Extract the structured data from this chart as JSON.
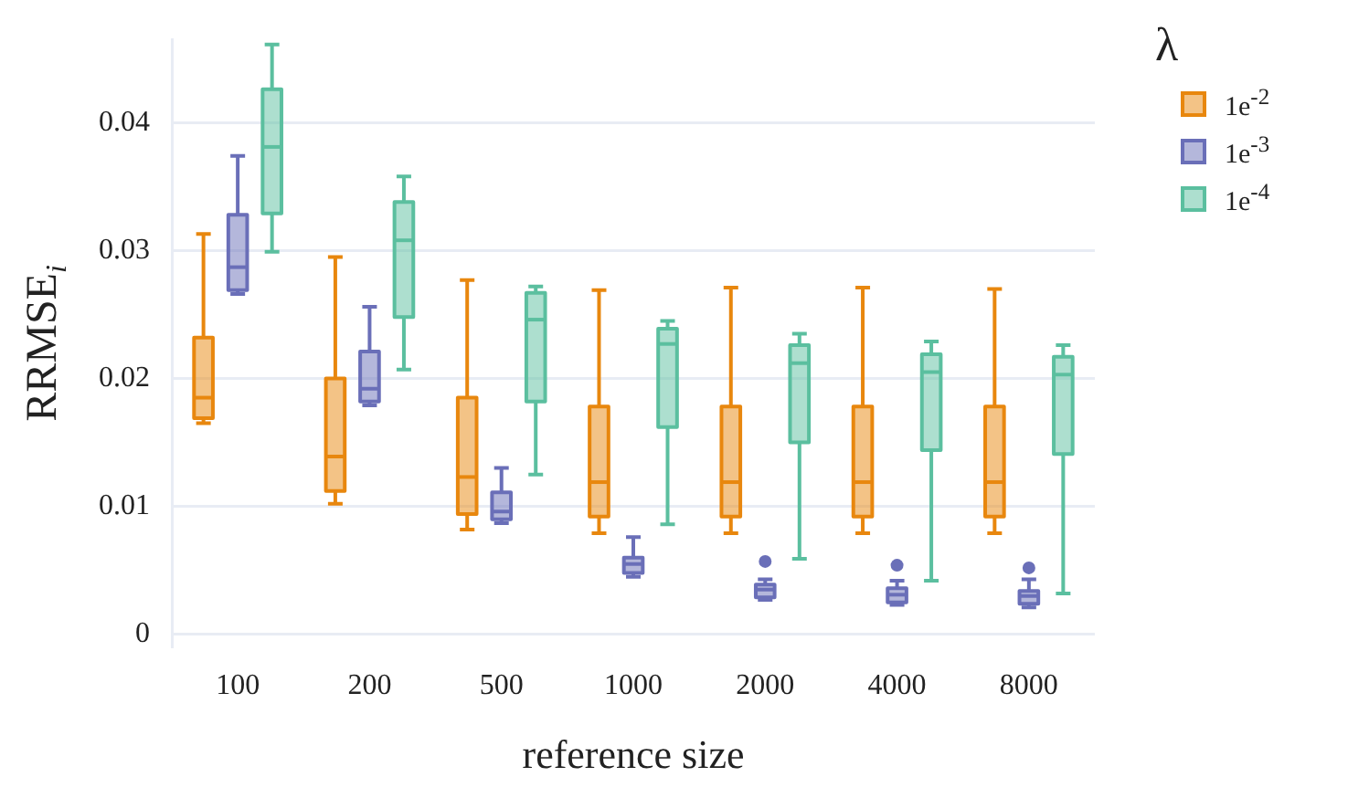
{
  "chart_data": {
    "type": "box",
    "xlabel": "reference size",
    "ylabel": "RRMSE$_{i}$",
    "legend_title": "λ",
    "legend": "top right",
    "grid": "y",
    "categories": [
      "100",
      "200",
      "500",
      "1000",
      "2000",
      "4000",
      "8000"
    ],
    "ylim": [
      -0.001,
      0.0465
    ],
    "yticks": [
      0,
      0.01,
      0.02,
      0.03,
      0.04
    ],
    "series": [
      {
        "name": "1e$^{-2}$",
        "color": "#e8870e",
        "boxes": [
          {
            "low": 0.0165,
            "q1": 0.0169,
            "median": 0.0185,
            "q3": 0.0232,
            "high": 0.0313
          },
          {
            "low": 0.0102,
            "q1": 0.0112,
            "median": 0.0139,
            "q3": 0.02,
            "high": 0.0295
          },
          {
            "low": 0.0082,
            "q1": 0.0094,
            "median": 0.0123,
            "q3": 0.0185,
            "high": 0.0277
          },
          {
            "low": 0.0079,
            "q1": 0.0092,
            "median": 0.0119,
            "q3": 0.0178,
            "high": 0.0269
          },
          {
            "low": 0.0079,
            "q1": 0.0092,
            "median": 0.0119,
            "q3": 0.0178,
            "high": 0.0271
          },
          {
            "low": 0.0079,
            "q1": 0.0092,
            "median": 0.0119,
            "q3": 0.0178,
            "high": 0.0271
          },
          {
            "low": 0.0079,
            "q1": 0.0092,
            "median": 0.0119,
            "q3": 0.0178,
            "high": 0.027
          }
        ]
      },
      {
        "name": "1e$^{-3}$",
        "color": "#6a6fb8",
        "boxes": [
          {
            "low": 0.0266,
            "q1": 0.0269,
            "median": 0.0287,
            "q3": 0.0328,
            "high": 0.0374
          },
          {
            "low": 0.0179,
            "q1": 0.0182,
            "median": 0.0192,
            "q3": 0.0221,
            "high": 0.0256
          },
          {
            "low": 0.0087,
            "q1": 0.009,
            "median": 0.0096,
            "q3": 0.0111,
            "high": 0.013
          },
          {
            "low": 0.0045,
            "q1": 0.0048,
            "median": 0.0055,
            "q3": 0.006,
            "high": 0.0076
          },
          {
            "low": 0.0027,
            "q1": 0.0029,
            "median": 0.0035,
            "q3": 0.0039,
            "high": 0.0043,
            "outliers": [
              0.0057
            ]
          },
          {
            "low": 0.0023,
            "q1": 0.0025,
            "median": 0.0031,
            "q3": 0.0036,
            "high": 0.0042,
            "outliers": [
              0.0054
            ]
          },
          {
            "low": 0.0021,
            "q1": 0.0024,
            "median": 0.003,
            "q3": 0.0034,
            "high": 0.0043,
            "outliers": [
              0.0052
            ]
          }
        ]
      },
      {
        "name": "1e$^{-4}$",
        "color": "#5bbf9f",
        "boxes": [
          {
            "low": 0.0299,
            "q1": 0.0329,
            "median": 0.0381,
            "q3": 0.0426,
            "high": 0.0461
          },
          {
            "low": 0.0207,
            "q1": 0.0248,
            "median": 0.0308,
            "q3": 0.0338,
            "high": 0.0358
          },
          {
            "low": 0.0125,
            "q1": 0.0182,
            "median": 0.0246,
            "q3": 0.0267,
            "high": 0.0272
          },
          {
            "low": 0.0086,
            "q1": 0.0162,
            "median": 0.0227,
            "q3": 0.0239,
            "high": 0.0245
          },
          {
            "low": 0.0059,
            "q1": 0.015,
            "median": 0.0212,
            "q3": 0.0226,
            "high": 0.0235
          },
          {
            "low": 0.0042,
            "q1": 0.0144,
            "median": 0.0205,
            "q3": 0.0219,
            "high": 0.0229
          },
          {
            "low": 0.0032,
            "q1": 0.0141,
            "median": 0.0203,
            "q3": 0.0217,
            "high": 0.0226
          }
        ]
      }
    ]
  }
}
